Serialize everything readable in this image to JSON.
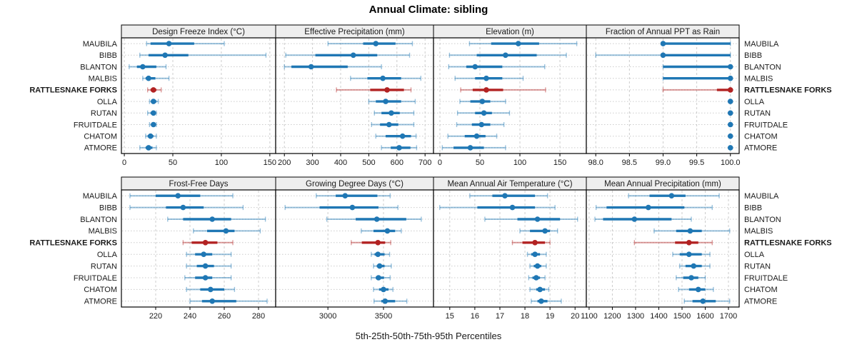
{
  "title": "Annual Climate: sibling",
  "caption": "5th-25th-50th-75th-95th Percentiles",
  "colors": {
    "blue": "#1f77b4",
    "red": "#b22222",
    "grid": "#cccccc",
    "header_bg": "#eeeeee",
    "border": "#000000",
    "text": "#1a1a1a"
  },
  "chart_data": {
    "type": "error-bar-trellis",
    "title": "Annual Climate: sibling",
    "caption": "5th-25th-50th-75th-95th Percentiles",
    "grid": true,
    "legend_position": "none",
    "percentiles": [
      5,
      25,
      50,
      75,
      95
    ],
    "rows": [
      "MAUBILA",
      "BIBB",
      "BLANTON",
      "MALBIS",
      "RATTLESNAKE FORKS",
      "OLLA",
      "RUTAN",
      "FRUITDALE",
      "CHATOM",
      "ATMORE"
    ],
    "highlight_row": "RATTLESNAKE FORKS",
    "panels": [
      {
        "title": "Design Freeze Index (°C)",
        "xlim": [
          -3,
          156
        ],
        "ticks": [
          0,
          50,
          100,
          150
        ],
        "tick_labels": [
          "0",
          "50",
          "100",
          "150"
        ],
        "series": [
          [
            23,
            27,
            46,
            72,
            103
          ],
          [
            16,
            25,
            42,
            66,
            146
          ],
          [
            5,
            13,
            19,
            33,
            43
          ],
          [
            19,
            22,
            25,
            32,
            46
          ],
          [
            24,
            27,
            30,
            33,
            38
          ],
          [
            26,
            28,
            30,
            33,
            35
          ],
          [
            24,
            27,
            30,
            31,
            33
          ],
          [
            26,
            28,
            30,
            32,
            33
          ],
          [
            22,
            24,
            27,
            30,
            33
          ],
          [
            16,
            22,
            25,
            29,
            33
          ]
        ]
      },
      {
        "title": "Effective Precipitation (mm)",
        "xlim": [
          169,
          730
        ],
        "ticks": [
          200,
          300,
          400,
          500,
          600,
          700
        ],
        "tick_labels": [
          "200",
          "300",
          "400",
          "500",
          "600",
          "700"
        ],
        "series": [
          [
            355,
            480,
            525,
            595,
            655
          ],
          [
            205,
            310,
            445,
            530,
            645
          ],
          [
            200,
            225,
            295,
            425,
            545
          ],
          [
            435,
            495,
            550,
            615,
            685
          ],
          [
            385,
            505,
            565,
            625,
            650
          ],
          [
            500,
            525,
            560,
            615,
            665
          ],
          [
            520,
            545,
            580,
            610,
            660
          ],
          [
            510,
            540,
            572,
            605,
            660
          ],
          [
            525,
            560,
            620,
            650,
            668
          ],
          [
            545,
            578,
            608,
            648,
            670
          ]
        ]
      },
      {
        "title": "Elevation (m)",
        "xlim": [
          -8,
          183
        ],
        "ticks": [
          0,
          50,
          100,
          150
        ],
        "tick_labels": [
          "0",
          "50",
          "100",
          "150"
        ],
        "series": [
          [
            37,
            64,
            98,
            124,
            171
          ],
          [
            12,
            46,
            82,
            121,
            158
          ],
          [
            11,
            33,
            44,
            78,
            131
          ],
          [
            19,
            44,
            58,
            78,
            104
          ],
          [
            26,
            41,
            58,
            79,
            132
          ],
          [
            25,
            38,
            53,
            63,
            82
          ],
          [
            22,
            44,
            55,
            65,
            87
          ],
          [
            21,
            40,
            52,
            63,
            80
          ],
          [
            10,
            31,
            46,
            57,
            71
          ],
          [
            3,
            17,
            38,
            55,
            82
          ]
        ]
      },
      {
        "title": "Fraction of Annual PPT as Rain",
        "xlim": [
          97.86,
          100.13
        ],
        "ticks": [
          98.0,
          98.5,
          99.0,
          99.5,
          100.0
        ],
        "tick_labels": [
          "98.0",
          "98.5",
          "99.0",
          "99.5",
          "100.0"
        ],
        "series": [
          [
            99,
            99,
            99,
            100,
            100
          ],
          [
            98,
            99,
            99,
            100,
            100
          ],
          [
            99,
            99,
            100,
            100,
            100
          ],
          [
            99,
            99,
            100,
            100,
            100
          ],
          [
            99,
            99.8,
            100,
            100,
            100
          ],
          [
            100,
            100,
            100,
            100,
            100
          ],
          [
            100,
            100,
            100,
            100,
            100
          ],
          [
            100,
            100,
            100,
            100,
            100
          ],
          [
            100,
            100,
            100,
            100,
            100
          ],
          [
            100,
            100,
            100,
            100,
            100
          ]
        ]
      },
      {
        "title": "Frost-Free Days",
        "xlim": [
          200,
          290
        ],
        "ticks": [
          220,
          240,
          260,
          280
        ],
        "tick_labels": [
          "220",
          "240",
          "260",
          "280"
        ],
        "series": [
          [
            205,
            220,
            233,
            246,
            265
          ],
          [
            205,
            226,
            236,
            248,
            271
          ],
          [
            227,
            236,
            253,
            264,
            284
          ],
          [
            242,
            250,
            261,
            266,
            281
          ],
          [
            236,
            241,
            249,
            256,
            265
          ],
          [
            238,
            243,
            248,
            253,
            264
          ],
          [
            238,
            244,
            249,
            254,
            264
          ],
          [
            237,
            243,
            249,
            253,
            264
          ],
          [
            238,
            246,
            252,
            260,
            266
          ],
          [
            240,
            247,
            253,
            267,
            285
          ]
        ]
      },
      {
        "title": "Growing Degree Days (°C)",
        "xlim": [
          2530,
          3950
        ],
        "ticks": [
          3000,
          3500
        ],
        "tick_labels": [
          "3000",
          "3500"
        ],
        "series": [
          [
            2895,
            3070,
            3155,
            3445,
            3560
          ],
          [
            2615,
            2925,
            3220,
            3455,
            3630
          ],
          [
            2990,
            3250,
            3440,
            3705,
            3840
          ],
          [
            3300,
            3410,
            3535,
            3605,
            3660
          ],
          [
            3210,
            3305,
            3450,
            3515,
            3565
          ],
          [
            3390,
            3420,
            3450,
            3510,
            3555
          ],
          [
            3410,
            3440,
            3465,
            3510,
            3570
          ],
          [
            3390,
            3430,
            3455,
            3505,
            3560
          ],
          [
            3410,
            3460,
            3500,
            3545,
            3585
          ],
          [
            3415,
            3480,
            3515,
            3605,
            3710
          ]
        ]
      },
      {
        "title": "Mean Annual Air Temperature (°C)",
        "xlim": [
          14.35,
          20.45
        ],
        "ticks": [
          15,
          16,
          17,
          18,
          19,
          20
        ],
        "tick_labels": [
          "15",
          "16",
          "17",
          "18",
          "19",
          "20"
        ],
        "series": [
          [
            15.8,
            16.7,
            17.2,
            18.4,
            18.9
          ],
          [
            14.6,
            16.1,
            17.5,
            18.4,
            19.2
          ],
          [
            16.4,
            17.7,
            18.5,
            19.4,
            20.1
          ],
          [
            17.8,
            18.2,
            18.8,
            19.0,
            19.3
          ],
          [
            17.5,
            17.9,
            18.4,
            18.8,
            19.0
          ],
          [
            18.1,
            18.25,
            18.4,
            18.6,
            18.85
          ],
          [
            18.2,
            18.35,
            18.5,
            18.65,
            18.85
          ],
          [
            18.15,
            18.3,
            18.45,
            18.6,
            18.8
          ],
          [
            18.2,
            18.45,
            18.6,
            18.8,
            18.95
          ],
          [
            18.25,
            18.5,
            18.65,
            18.9,
            19.45
          ]
        ]
      },
      {
        "title": "Mean Annual Precipitation (mm)",
        "xlim": [
          1088,
          1746
        ],
        "ticks": [
          1100,
          1200,
          1300,
          1400,
          1500,
          1600,
          1700
        ],
        "tick_labels": [
          "1100",
          "1200",
          "1300",
          "1400",
          "1500",
          "1600",
          "1700"
        ],
        "series": [
          [
            1270,
            1360,
            1455,
            1515,
            1660
          ],
          [
            1130,
            1175,
            1355,
            1510,
            1630
          ],
          [
            1125,
            1160,
            1295,
            1455,
            1540
          ],
          [
            1380,
            1475,
            1535,
            1585,
            1705
          ],
          [
            1295,
            1470,
            1530,
            1570,
            1630
          ],
          [
            1460,
            1490,
            1530,
            1585,
            1620
          ],
          [
            1490,
            1515,
            1550,
            1585,
            1620
          ],
          [
            1475,
            1505,
            1540,
            1570,
            1600
          ],
          [
            1485,
            1530,
            1570,
            1600,
            1635
          ],
          [
            1510,
            1545,
            1590,
            1645,
            1705
          ]
        ]
      }
    ]
  }
}
